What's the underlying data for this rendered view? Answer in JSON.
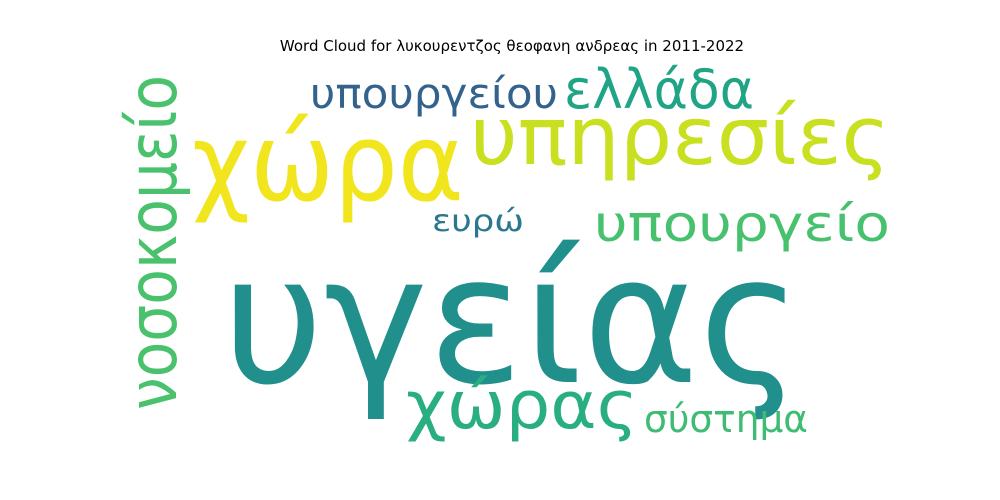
{
  "chart_data": {
    "type": "wordcloud",
    "title": "Word Cloud for λυκουρεντζος θεοφανη ανδρεας in 2011-2022",
    "words": [
      {
        "text": "υγείας",
        "color": "#21908d"
      },
      {
        "text": "χώρα",
        "color": "#f1e51d"
      },
      {
        "text": "υπηρεσίες",
        "color": "#c8e020"
      },
      {
        "text": "νοσοκομείο",
        "color": "#4ac16d"
      },
      {
        "text": "χώρας",
        "color": "#28ae80"
      },
      {
        "text": "υπουργείο",
        "color": "#48c16e"
      },
      {
        "text": "ελλάδα",
        "color": "#20a486"
      },
      {
        "text": "υπουργείου",
        "color": "#33638d"
      },
      {
        "text": "σύστημα",
        "color": "#3fbc73"
      },
      {
        "text": "ευρώ",
        "color": "#2a788e"
      }
    ]
  }
}
